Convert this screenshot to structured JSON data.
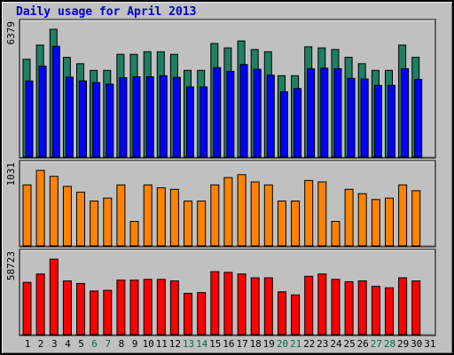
{
  "chart_data": {
    "type": "bar",
    "title": "Daily usage for April 2013",
    "categories": [
      "1",
      "2",
      "3",
      "4",
      "5",
      "6",
      "7",
      "8",
      "9",
      "10",
      "11",
      "12",
      "13",
      "14",
      "15",
      "16",
      "17",
      "18",
      "19",
      "20",
      "21",
      "22",
      "23",
      "24",
      "25",
      "26",
      "27",
      "28",
      "29",
      "30",
      "31"
    ],
    "weekend_days": [
      "6",
      "7",
      "13",
      "14",
      "20",
      "21",
      "27",
      "28"
    ],
    "colors": {
      "background": "#c0c0c0",
      "panel": "#c0c0c0",
      "title": "#0000c8",
      "weekday_tick": "#000000",
      "weekend_tick": "#006e46"
    },
    "panels": [
      {
        "ymax_label": "6379",
        "ylim": [
          0,
          6379
        ],
        "series": [
          {
            "color": "#1f7f62",
            "values": [
              4880,
              5590,
              6379,
              4980,
              4660,
              4330,
              4330,
              5130,
              5130,
              5260,
              5260,
              5130,
              4330,
              4330,
              5670,
              5450,
              5800,
              5370,
              5260,
              4060,
              4060,
              5500,
              5450,
              5370,
              4980,
              4660,
              4330,
              4330,
              5590,
              4980,
              null
            ]
          },
          {
            "color": "#0000ff",
            "values": [
              3800,
              4540,
              5530,
              3990,
              3800,
              3720,
              3640,
              3960,
              4010,
              4010,
              4060,
              3980,
              3500,
              3500,
              4460,
              4280,
              4620,
              4380,
              4090,
              3260,
              3420,
              4410,
              4440,
              4410,
              3930,
              3900,
              3580,
              3580,
              4410,
              3880,
              null
            ]
          }
        ]
      },
      {
        "ymax_label": "1031",
        "ylim": [
          0,
          1031
        ],
        "series": [
          {
            "color": "#ff8200",
            "values": [
              833,
              1031,
              950,
              813,
              733,
              613,
              653,
              833,
              333,
              833,
              793,
              773,
              613,
              613,
              833,
              933,
              973,
              873,
              833,
              613,
              613,
              893,
              873,
              333,
              773,
              713,
              633,
              653,
              833,
              753,
              null
            ]
          }
        ]
      },
      {
        "ymax_label": "58723",
        "ylim": [
          0,
          58723
        ],
        "series": [
          {
            "color": "#ff0000",
            "values": [
              40600,
              47200,
              58723,
              41800,
              39800,
              33900,
              34500,
              42400,
              42400,
              43000,
              43000,
              41800,
              32100,
              32700,
              49000,
              48400,
              47200,
              44200,
              44200,
              33300,
              30900,
              45400,
              47200,
              43000,
              41200,
              41800,
              37600,
              36400,
              44200,
              41800,
              null
            ]
          }
        ]
      }
    ]
  }
}
